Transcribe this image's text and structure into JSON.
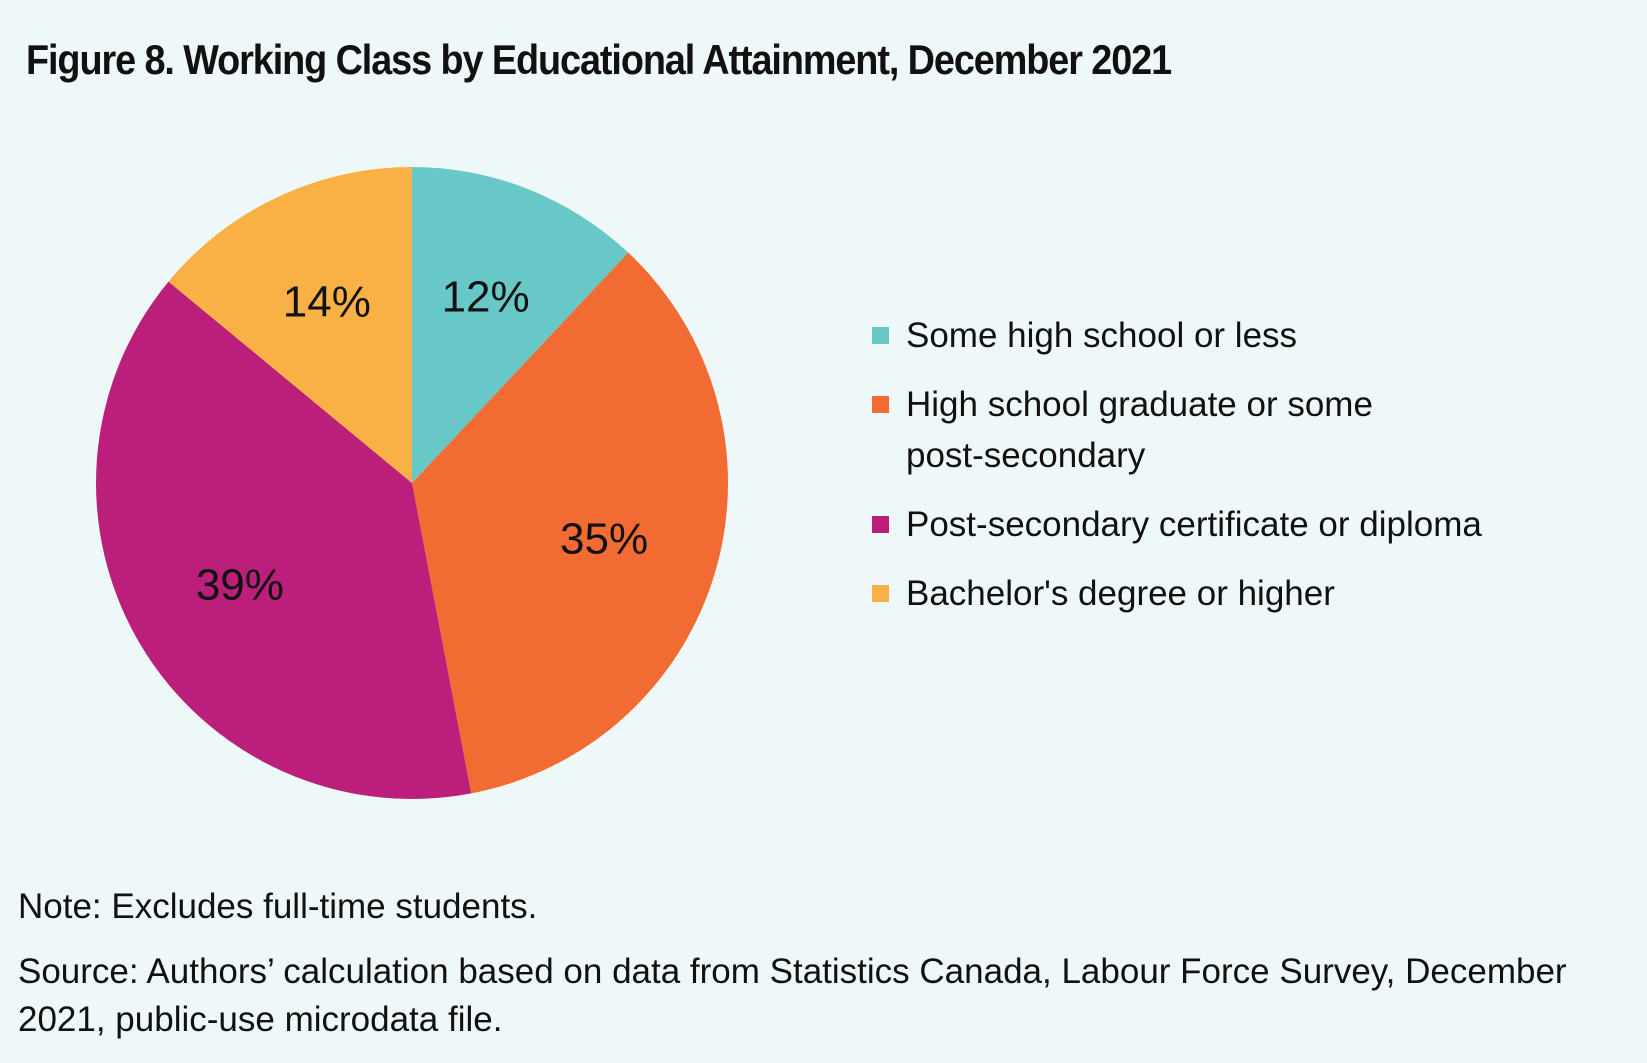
{
  "chart_data": {
    "type": "pie",
    "title": "Figure 8. Working Class by Educational Attainment, December 2021",
    "slices": [
      {
        "label": "Some high school or less",
        "value": 12,
        "value_label": "12%",
        "color": "#68c8c8"
      },
      {
        "label": "High school graduate or some post-secondary",
        "value": 35,
        "value_label": "35%",
        "color": "#f26b33"
      },
      {
        "label": "Post-secondary certificate or diploma",
        "value": 39,
        "value_label": "39%",
        "color": "#bb1f7b"
      },
      {
        "label": "Bachelor's degree or higher",
        "value": 14,
        "value_label": "14%",
        "color": "#f9b045"
      }
    ],
    "legend_position": "right"
  },
  "note": "Note: Excludes full-time students.",
  "source": "Source: Authors’ calculation based on data from Statistics Canada, Labour Force Survey, December 2021, public-use microdata file."
}
